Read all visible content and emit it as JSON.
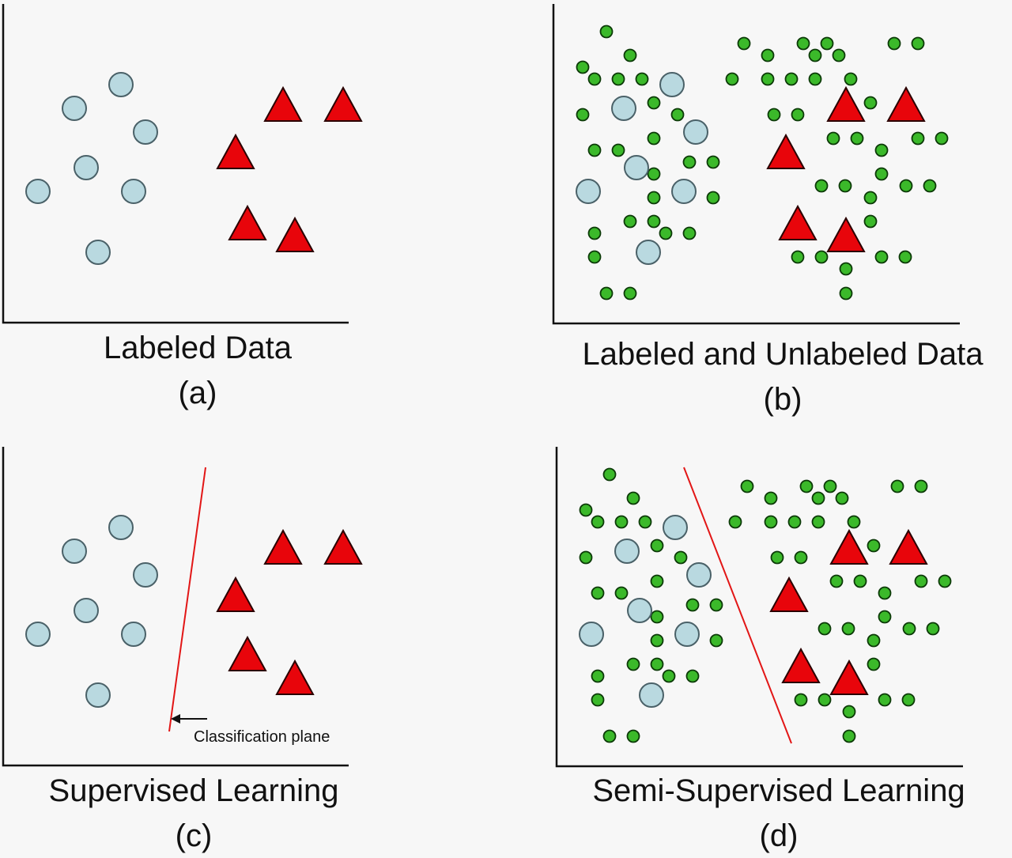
{
  "colors": {
    "background": "#f7f7f7",
    "axis": "#111111",
    "labeled_circle_fill": "#b9d9e0",
    "labeled_circle_stroke": "#4a6168",
    "triangle_fill": "#e8050b",
    "triangle_stroke": "#2a0000",
    "unlabeled_fill": "#3bb92a",
    "unlabeled_stroke": "#0c3a08",
    "plane": "#e21616"
  },
  "panels": [
    {
      "id": "a",
      "title": "Labeled Data",
      "letter": "(a)"
    },
    {
      "id": "b",
      "title": "Labeled and Unlabeled Data",
      "letter": "(b)"
    },
    {
      "id": "c",
      "title": "Supervised Learning",
      "letter": "(c)",
      "annotation": "Classification plane"
    },
    {
      "id": "d",
      "title": "Semi-Supervised Learning",
      "letter": "(d)"
    }
  ]
}
